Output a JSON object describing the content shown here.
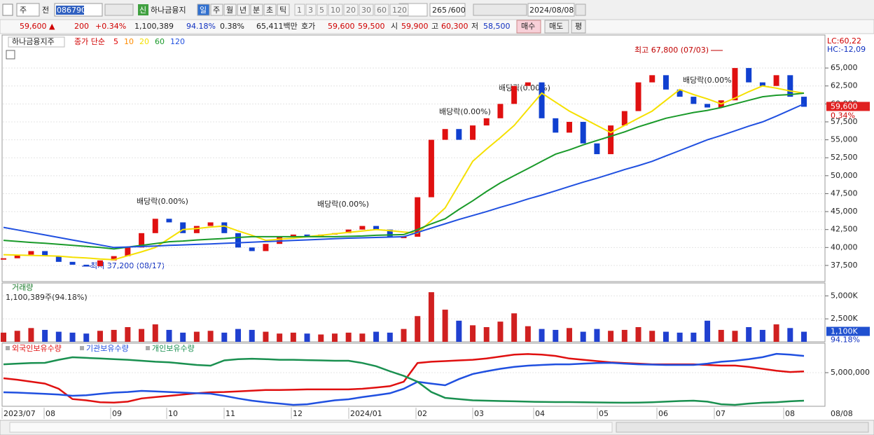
{
  "toolbar": {
    "market": "주",
    "mode": "전",
    "code": "086790",
    "badge": "신",
    "stock": "하나금융지",
    "periods": [
      "일",
      "주",
      "월",
      "년",
      "분",
      "초",
      "틱"
    ],
    "intervals": [
      "1",
      "3",
      "5",
      "10",
      "20",
      "30",
      "60",
      "120"
    ],
    "count": "265",
    "max": "/600",
    "date": "2024/08/08"
  },
  "info": {
    "price": "59,600",
    "arrow": "▲",
    "change": "200",
    "rate": "+0.34%",
    "volume": "1,100,389",
    "vol_ratio": "94.18%",
    "turnover": "0.38%",
    "amount": "65,411백만",
    "quote": "호가",
    "ask": "59,600",
    "bid": "59,500",
    "open_label": "시",
    "open": "59,900",
    "high_label": "고",
    "high": "60,300",
    "low_label": "저",
    "low": "58,500",
    "buy": "매수",
    "sell": "매도",
    "avg": "평"
  },
  "time_axis": [
    "2023/07",
    "08",
    "09",
    "10",
    "11",
    "12",
    "2024/01",
    "02",
    "03",
    "04",
    "05",
    "06",
    "07",
    "08",
    "08/08"
  ],
  "chart_data": [
    {
      "type": "candlestick",
      "name": "하나금융지주",
      "method": "종가 단순",
      "lc": "LC:60,22",
      "hc": "HC:-12,09",
      "last_change": "0.34%",
      "ylim": [
        35250,
        69400
      ],
      "yticks": [
        {
          "value": 37500,
          "label": "37,500"
        },
        {
          "value": 40000,
          "label": "40,000"
        },
        {
          "value": 42500,
          "label": "42,500"
        },
        {
          "value": 45000,
          "label": "45,000"
        },
        {
          "value": 47500,
          "label": "47,500"
        },
        {
          "value": 50000,
          "label": "50,000"
        },
        {
          "value": 52500,
          "label": "52,500"
        },
        {
          "value": 55000,
          "label": "55,000"
        },
        {
          "value": 57500,
          "label": "57,500"
        },
        {
          "value": 60000,
          "label": "60,000"
        },
        {
          "value": 62500,
          "label": "62,500"
        },
        {
          "value": 65000,
          "label": "65,000"
        }
      ],
      "grid": true,
      "up_color": "#e01010",
      "down_color": "#1040d0",
      "values": [
        38500,
        39000,
        39500,
        38800,
        38000,
        37600,
        37400,
        38200,
        38800,
        40000,
        42000,
        44000,
        43500,
        42000,
        43000,
        43500,
        42000,
        40000,
        39500,
        40500,
        41500,
        41800,
        41500,
        41800,
        42000,
        42500,
        43000,
        42500,
        41500,
        41500,
        47000,
        55000,
        56500,
        55000,
        57000,
        58000,
        60000,
        62500,
        63000,
        58000,
        56000,
        57500,
        54500,
        53000,
        57000,
        59000,
        63000,
        64000,
        62000,
        61000,
        60000,
        59500,
        60500,
        65000,
        63000,
        62500,
        64000,
        61000,
        59600
      ],
      "ma_labels": [
        {
          "name": "5",
          "color": "#e00000"
        },
        {
          "name": "10",
          "color": "#ff8c00"
        }
      ],
      "series": [
        {
          "name": "20",
          "color": "#f5e000",
          "values": [
            39000,
            38950,
            38900,
            38850,
            38800,
            38650,
            38550,
            38400,
            38300,
            38850,
            39400,
            40000,
            41250,
            42500,
            42650,
            42850,
            43000,
            42300,
            41700,
            41000,
            41150,
            41300,
            41500,
            41700,
            41900,
            42100,
            42300,
            42500,
            42350,
            42150,
            42000,
            43750,
            45500,
            48750,
            52000,
            53700,
            55300,
            57000,
            59250,
            61500,
            60250,
            59000,
            58000,
            57000,
            56000,
            57000,
            58000,
            59000,
            60500,
            62000,
            61300,
            60700,
            60000,
            60800,
            61700,
            62500,
            62200,
            61800,
            61500
          ]
        },
        {
          "name": "60",
          "color": "#1a9a2a",
          "values": [
            41000,
            40850,
            40700,
            40600,
            40450,
            40300,
            40150,
            40000,
            39800,
            40050,
            40300,
            40550,
            40800,
            40900,
            41050,
            41150,
            41250,
            41400,
            41500,
            41500,
            41500,
            41500,
            41500,
            41500,
            41500,
            41550,
            41600,
            41700,
            41750,
            41800,
            42500,
            43300,
            44000,
            45300,
            46500,
            47800,
            49000,
            50000,
            51000,
            52000,
            53000,
            53600,
            54300,
            54900,
            55500,
            56100,
            56800,
            57400,
            58000,
            58400,
            58800,
            59100,
            59500,
            60000,
            60500,
            61000,
            61200,
            61300,
            61500
          ]
        },
        {
          "name": "120",
          "color": "#2050e0",
          "values": [
            42800,
            42450,
            42100,
            41750,
            41400,
            41050,
            40700,
            40350,
            40000,
            40070,
            40140,
            40210,
            40290,
            40360,
            40430,
            40500,
            40580,
            40660,
            40740,
            40820,
            40900,
            40980,
            41060,
            41140,
            41220,
            41300,
            41350,
            41400,
            41450,
            41500,
            42100,
            42700,
            43300,
            43900,
            44450,
            45000,
            45600,
            46150,
            46750,
            47300,
            47900,
            48500,
            49100,
            49650,
            50250,
            50850,
            51400,
            52000,
            52750,
            53500,
            54250,
            55000,
            55600,
            56250,
            56900,
            57500,
            58300,
            59150,
            60000
          ]
        }
      ],
      "annotations": [
        "최고 67,800 (07/03)",
        "최저 37,200 (08/17)",
        "배당락(0.00%)",
        "배당락(0.00%)",
        "배당락(0.00%)",
        "배당락(0.00%)",
        "배당락(0.00%)"
      ]
    },
    {
      "type": "bar",
      "title": "거래량",
      "subtitle": "1,100,389주(94.18%)",
      "last_label": "1,100K",
      "last_ratio": "94.18%",
      "ylim": [
        0,
        6400
      ],
      "yticks": [
        {
          "value": 2500,
          "label": "2,500K"
        },
        {
          "value": 5000,
          "label": "5,000K"
        }
      ],
      "up_color": "#d02020",
      "down_color": "#2040d0",
      "values": [
        1000,
        1200,
        1500,
        1300,
        1100,
        1000,
        900,
        1200,
        1300,
        1600,
        1400,
        1900,
        1300,
        1000,
        1100,
        1200,
        1000,
        1400,
        1300,
        1100,
        900,
        1000,
        900,
        800,
        900,
        1000,
        900,
        1100,
        1000,
        1400,
        2800,
        5400,
        3500,
        2300,
        1800,
        1600,
        2200,
        3100,
        1700,
        1400,
        1300,
        1500,
        1100,
        1400,
        1200,
        1300,
        1600,
        1200,
        1100,
        1000,
        1000,
        2300,
        1300,
        1200,
        1600,
        1300,
        1900,
        1500,
        1100
      ]
    },
    {
      "type": "line",
      "ylim": [
        -220000,
        9570000
      ],
      "yticks": [
        {
          "value": 5000000,
          "label": "5,000,000"
        }
      ],
      "series": [
        {
          "name": "외국인보유수량",
          "color": "#e01010",
          "values": [
            4130000,
            3900000,
            3600000,
            3300000,
            2500000,
            900000,
            700000,
            400000,
            350000,
            500000,
            1000000,
            1200000,
            1400000,
            1600000,
            1800000,
            1960000,
            2000000,
            2100000,
            2200000,
            2300000,
            2300000,
            2350000,
            2400000,
            2400000,
            2400000,
            2400000,
            2500000,
            2700000,
            2900000,
            3600000,
            6500000,
            6700000,
            6800000,
            6900000,
            7000000,
            7200000,
            7500000,
            7800000,
            7900000,
            7800000,
            7600000,
            7200000,
            7000000,
            6800000,
            6600000,
            6500000,
            6400000,
            6300000,
            6300000,
            6300000,
            6300000,
            6200000,
            6100000,
            6100000,
            5900000,
            5600000,
            5300000,
            5100000,
            5200000
          ]
        },
        {
          "name": "기관보유수량",
          "color": "#2050e0",
          "values": [
            1960000,
            1900000,
            1800000,
            1700000,
            1600000,
            1410000,
            1500000,
            1700000,
            1900000,
            2000000,
            2170000,
            2100000,
            2000000,
            1900000,
            1800000,
            1740000,
            1400000,
            1000000,
            650000,
            400000,
            200000,
            0,
            100000,
            400000,
            700000,
            870000,
            1200000,
            1500000,
            1800000,
            2500000,
            3590000,
            3300000,
            3040000,
            4000000,
            4800000,
            5220000,
            5600000,
            5900000,
            6090000,
            6200000,
            6300000,
            6300000,
            6400000,
            6500000,
            6520000,
            6400000,
            6300000,
            6250000,
            6200000,
            6200000,
            6200000,
            6400000,
            6700000,
            6850000,
            7100000,
            7400000,
            7930000,
            7800000,
            7600000
          ]
        },
        {
          "name": "개인보유수량",
          "color": "#1a9050",
          "values": [
            6300000,
            6400000,
            6500000,
            6520000,
            7000000,
            7390000,
            7300000,
            7200000,
            7100000,
            7000000,
            6850000,
            6700000,
            6600000,
            6400000,
            6200000,
            6090000,
            6900000,
            7100000,
            7170000,
            7100000,
            7000000,
            7000000,
            6950000,
            6900000,
            6850000,
            6850000,
            6500000,
            6000000,
            5220000,
            4500000,
            3590000,
            2000000,
            1090000,
            900000,
            700000,
            650000,
            600000,
            550000,
            500000,
            450000,
            430000,
            430000,
            400000,
            380000,
            350000,
            330000,
            350000,
            400000,
            500000,
            600000,
            650000,
            500000,
            100000,
            0,
            200000,
            330000,
            400000,
            550000,
            650000
          ]
        }
      ]
    }
  ]
}
